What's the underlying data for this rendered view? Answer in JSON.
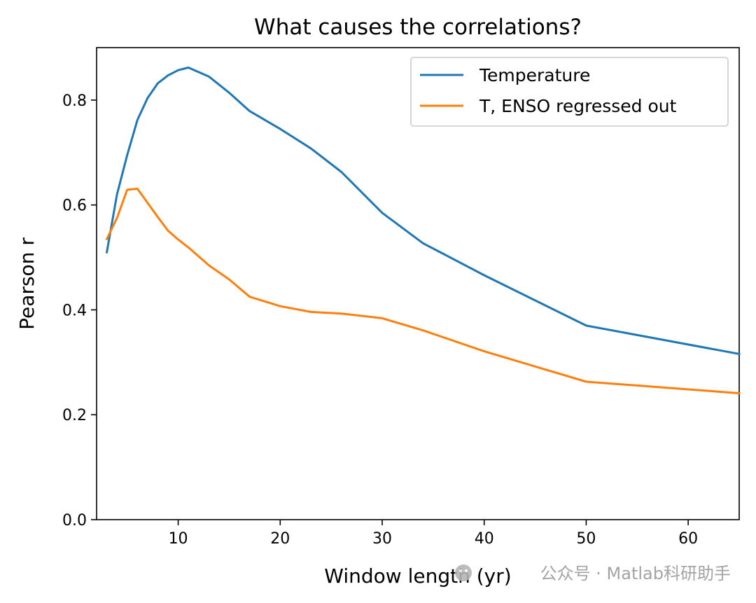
{
  "chart_data": {
    "type": "line",
    "title": "What causes the correlations?",
    "xlabel": "Window length (yr)",
    "ylabel": "Pearson r",
    "xlim": [
      2,
      65
    ],
    "ylim": [
      0.0,
      0.9
    ],
    "xticks": [
      10,
      20,
      30,
      40,
      50,
      60
    ],
    "yticks": [
      0.0,
      0.2,
      0.4,
      0.6,
      0.8
    ],
    "xtick_labels": [
      "10",
      "20",
      "30",
      "40",
      "50",
      "60"
    ],
    "ytick_labels": [
      "0.0",
      "0.2",
      "0.4",
      "0.6",
      "0.8"
    ],
    "grid": false,
    "legend_position": "top-right",
    "series": [
      {
        "name": "Temperature",
        "color": "#1f77b4",
        "x": [
          3,
          4,
          5,
          6,
          7,
          8,
          9,
          10,
          11,
          13,
          15,
          17,
          20,
          23,
          26,
          30,
          34,
          40,
          50,
          65
        ],
        "y": [
          0.51,
          0.62,
          0.695,
          0.762,
          0.804,
          0.832,
          0.847,
          0.857,
          0.862,
          0.845,
          0.814,
          0.779,
          0.745,
          0.708,
          0.663,
          0.585,
          0.527,
          0.466,
          0.37,
          0.316
        ]
      },
      {
        "name": "T, ENSO regressed out",
        "color": "#ff7f0e",
        "x": [
          3,
          4,
          5,
          6,
          7,
          8,
          9,
          10,
          11,
          13,
          15,
          17,
          20,
          23,
          26,
          30,
          34,
          40,
          50,
          65
        ],
        "y": [
          0.535,
          0.575,
          0.629,
          0.631,
          0.604,
          0.577,
          0.551,
          0.534,
          0.519,
          0.485,
          0.458,
          0.425,
          0.407,
          0.396,
          0.393,
          0.384,
          0.361,
          0.321,
          0.263,
          0.241
        ]
      }
    ]
  },
  "watermark": {
    "text": "公众号 · Matlab科研助手",
    "icon": "wechat-icon"
  }
}
